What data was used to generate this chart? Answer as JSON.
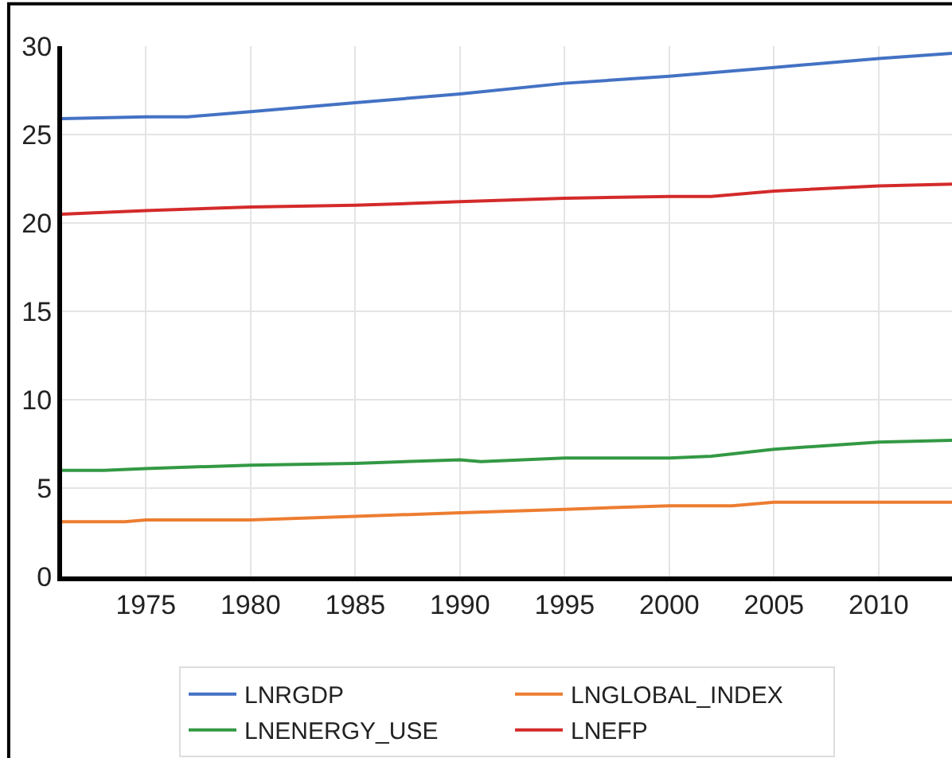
{
  "chart_data": {
    "type": "line",
    "xlim": [
      1971,
      2013.5
    ],
    "xticks": [
      1975,
      1980,
      1985,
      1990,
      1995,
      2000,
      2005,
      2010
    ],
    "ylim": [
      0,
      30
    ],
    "yticks": [
      0,
      5,
      10,
      15,
      20,
      25,
      30
    ],
    "grid": true,
    "legend": "bottom",
    "line_style": "solid",
    "marker": "none",
    "series": [
      {
        "name": "LNRGDP",
        "color": "#4472c4",
        "x": [
          1971,
          1975,
          1977,
          1980,
          1985,
          1990,
          1995,
          2000,
          2005,
          2010,
          2013.5
        ],
        "values": [
          25.9,
          26.0,
          26.0,
          26.3,
          26.8,
          27.3,
          27.9,
          28.3,
          28.8,
          29.3,
          29.6
        ]
      },
      {
        "name": "LNGLOBAL_INDEX",
        "color": "#ed7d31",
        "x": [
          1971,
          1974,
          1975,
          1980,
          1985,
          1990,
          1995,
          2000,
          2003,
          2005,
          2010,
          2013.5
        ],
        "values": [
          3.1,
          3.1,
          3.2,
          3.2,
          3.4,
          3.6,
          3.8,
          4.0,
          4.0,
          4.2,
          4.2,
          4.2
        ]
      },
      {
        "name": "LNENERGY_USE",
        "color": "#339944",
        "x": [
          1971,
          1973,
          1975,
          1980,
          1985,
          1990,
          1991,
          1995,
          2000,
          2002,
          2005,
          2010,
          2013.5
        ],
        "values": [
          6.0,
          6.0,
          6.1,
          6.3,
          6.4,
          6.6,
          6.5,
          6.7,
          6.7,
          6.8,
          7.2,
          7.6,
          7.7
        ]
      },
      {
        "name": "LNEFP",
        "color": "#d42a2a",
        "x": [
          1971,
          1975,
          1980,
          1985,
          1990,
          1995,
          2000,
          2002,
          2005,
          2010,
          2013.5
        ],
        "values": [
          20.5,
          20.7,
          20.9,
          21.0,
          21.2,
          21.4,
          21.5,
          21.5,
          21.8,
          22.1,
          22.2
        ]
      }
    ]
  }
}
